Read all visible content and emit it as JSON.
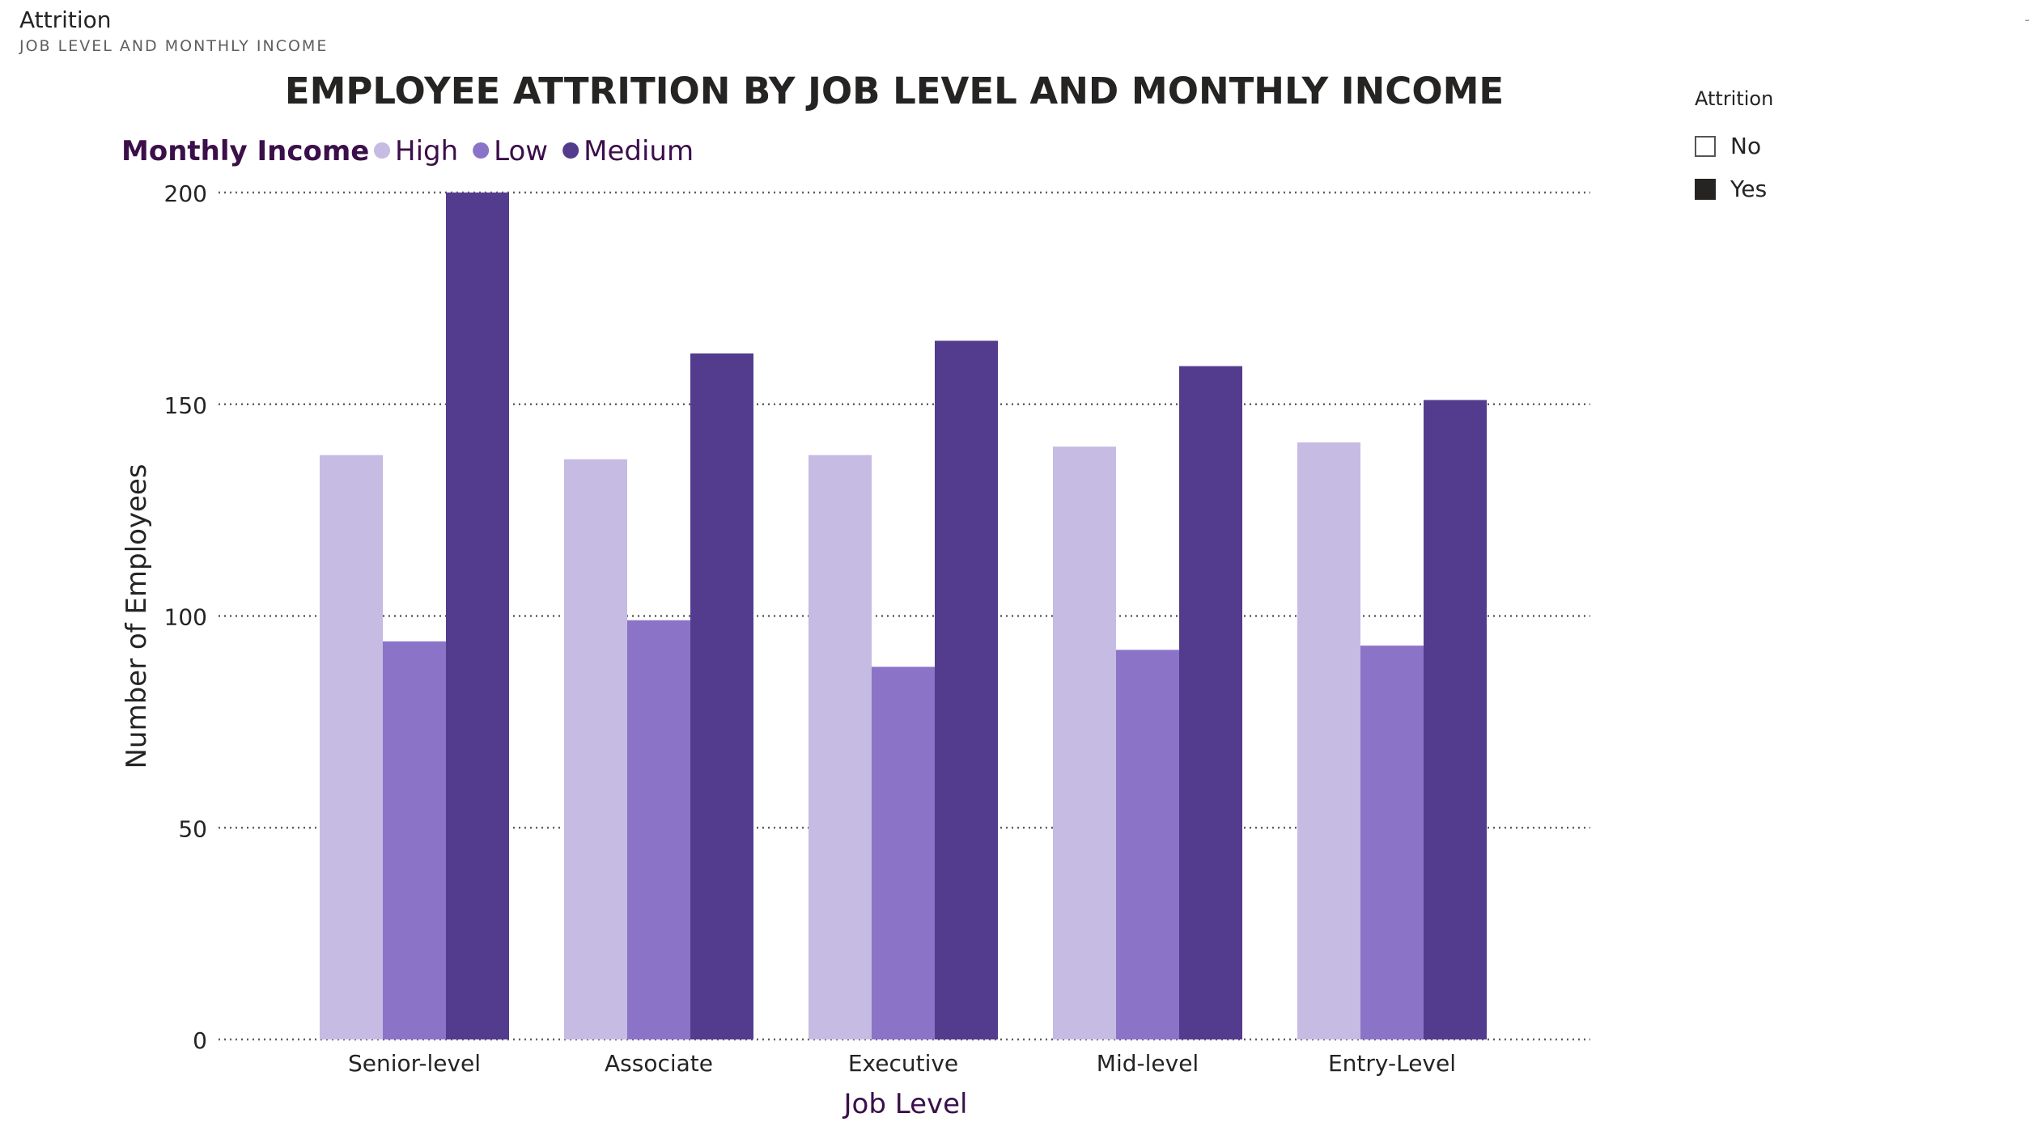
{
  "visual": {
    "title": "Attrition",
    "subtitle": "JOB LEVEL AND MONTHLY INCOME"
  },
  "corner_mark": "-",
  "slicer": {
    "title": "Attrition",
    "items": [
      {
        "label": "No",
        "checked": false
      },
      {
        "label": "Yes",
        "checked": true
      }
    ]
  },
  "legend_title": "Monthly Income",
  "chart_data": {
    "type": "bar",
    "title": "EMPLOYEE ATTRITION BY JOB LEVEL AND MONTHLY INCOME",
    "xlabel": "Job Level",
    "ylabel": "Number of Employees",
    "categories": [
      "Senior-level",
      "Associate",
      "Executive",
      "Mid-level",
      "Entry-Level"
    ],
    "series": [
      {
        "name": "High",
        "color": "#c5bbe3",
        "values": [
          138,
          137,
          138,
          140,
          141
        ]
      },
      {
        "name": "Low",
        "color": "#8b74c8",
        "values": [
          94,
          99,
          88,
          92,
          93
        ]
      },
      {
        "name": "Medium",
        "color": "#533c8d",
        "values": [
          200,
          162,
          165,
          159,
          151
        ]
      }
    ],
    "ylim": [
      0,
      200
    ],
    "yticks": [
      0,
      50,
      100,
      150,
      200
    ],
    "grid": true,
    "legend_position": "top-left"
  }
}
